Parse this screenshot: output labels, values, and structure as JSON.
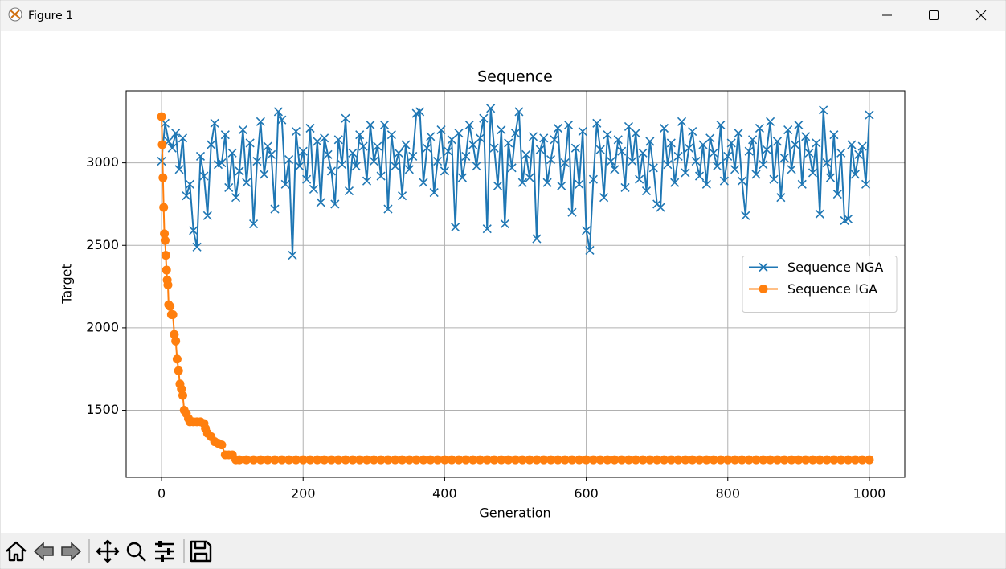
{
  "window": {
    "title": "Figure 1"
  },
  "chart_data": {
    "type": "line",
    "title": "Sequence",
    "x_label": "Generation",
    "y_label": "Target",
    "xlim": [
      -50,
      1050
    ],
    "ylim": [
      1093.5,
      3436.5
    ],
    "xticks": [
      0,
      200,
      400,
      600,
      800,
      1000
    ],
    "yticks": [
      1500,
      2000,
      2500,
      3000
    ],
    "grid": true,
    "legend_location": "center right",
    "series": [
      {
        "name": "Sequence NGA",
        "color": "#1f77b4",
        "marker": "x",
        "x": [
          0,
          5,
          10,
          15,
          20,
          25,
          30,
          35,
          40,
          45,
          50,
          55,
          60,
          65,
          70,
          75,
          80,
          85,
          90,
          95,
          100,
          105,
          110,
          115,
          120,
          125,
          130,
          135,
          140,
          145,
          150,
          155,
          160,
          165,
          170,
          175,
          180,
          185,
          190,
          195,
          200,
          205,
          210,
          215,
          220,
          225,
          230,
          235,
          240,
          245,
          250,
          255,
          260,
          265,
          270,
          275,
          280,
          285,
          290,
          295,
          300,
          305,
          310,
          315,
          320,
          325,
          330,
          335,
          340,
          345,
          350,
          355,
          360,
          365,
          370,
          375,
          380,
          385,
          390,
          395,
          400,
          405,
          410,
          415,
          420,
          425,
          430,
          435,
          440,
          445,
          450,
          455,
          460,
          465,
          470,
          475,
          480,
          485,
          490,
          495,
          500,
          505,
          510,
          515,
          520,
          525,
          530,
          535,
          540,
          545,
          550,
          555,
          560,
          565,
          570,
          575,
          580,
          585,
          590,
          595,
          600,
          605,
          610,
          615,
          620,
          625,
          630,
          635,
          640,
          645,
          650,
          655,
          660,
          665,
          670,
          675,
          680,
          685,
          690,
          695,
          700,
          705,
          710,
          715,
          720,
          725,
          730,
          735,
          740,
          745,
          750,
          755,
          760,
          765,
          770,
          775,
          780,
          785,
          790,
          795,
          800,
          805,
          810,
          815,
          820,
          825,
          830,
          835,
          840,
          845,
          850,
          855,
          860,
          865,
          870,
          875,
          880,
          885,
          890,
          895,
          900,
          905,
          910,
          915,
          920,
          925,
          930,
          935,
          940,
          945,
          950,
          955,
          960,
          965,
          970,
          975,
          980,
          985,
          990,
          995,
          1000
        ],
        "values": [
          3010,
          3240,
          3130,
          3090,
          3180,
          2960,
          3150,
          2800,
          2870,
          2590,
          2490,
          3040,
          2920,
          2680,
          3110,
          3240,
          2990,
          3000,
          3170,
          2850,
          3060,
          2790,
          2950,
          3200,
          2880,
          3120,
          2630,
          3010,
          3250,
          2930,
          3100,
          3050,
          2720,
          3310,
          3260,
          2870,
          3020,
          2440,
          3190,
          2980,
          3070,
          2900,
          3210,
          2840,
          3130,
          2760,
          3150,
          3050,
          2950,
          2750,
          3140,
          2990,
          3270,
          2830,
          3060,
          2980,
          3170,
          3100,
          2890,
          3230,
          3010,
          3100,
          2920,
          3230,
          2720,
          3170,
          2980,
          3060,
          2800,
          3110,
          2960,
          3040,
          3300,
          3310,
          2880,
          3090,
          3160,
          2820,
          3010,
          3200,
          2950,
          3070,
          3140,
          2610,
          3180,
          2910,
          3040,
          3230,
          3110,
          2980,
          3150,
          3270,
          2600,
          3330,
          3090,
          2860,
          3200,
          2630,
          3120,
          2970,
          3180,
          3310,
          2880,
          3050,
          2910,
          3160,
          2540,
          3080,
          3150,
          2880,
          3020,
          3140,
          3210,
          2860,
          3000,
          3230,
          2700,
          3090,
          2870,
          3190,
          2590,
          2470,
          2900,
          3240,
          3080,
          2790,
          3170,
          3010,
          2960,
          3140,
          3070,
          2850,
          3220,
          3010,
          3180,
          2900,
          3060,
          2830,
          3130,
          2970,
          2750,
          2730,
          3210,
          2990,
          3120,
          2880,
          3040,
          3250,
          2940,
          3090,
          3190,
          3010,
          2920,
          3110,
          2870,
          3150,
          3060,
          2980,
          3230,
          2890,
          3040,
          3120,
          2960,
          3180,
          2890,
          2680,
          3070,
          3140,
          2930,
          3210,
          2990,
          3080,
          3250,
          2900,
          3130,
          2790,
          3030,
          3200,
          2960,
          3110,
          3230,
          2870,
          3160,
          3060,
          2940,
          3120,
          2690,
          3320,
          3000,
          2910,
          3170,
          2810,
          3060,
          2650,
          2660,
          3110,
          2930,
          3050,
          3100,
          2870,
          3290
        ]
      },
      {
        "name": "Sequence IGA",
        "color": "#ff7f0e",
        "marker": "o",
        "x": [
          0,
          1,
          2,
          3,
          4,
          5,
          6,
          7,
          8,
          9,
          10,
          12,
          14,
          16,
          18,
          20,
          22,
          24,
          26,
          28,
          30,
          32,
          35,
          38,
          40,
          45,
          50,
          55,
          60,
          62,
          65,
          70,
          75,
          80,
          85,
          90,
          95,
          100,
          105,
          110,
          120,
          130,
          140,
          150,
          160,
          170,
          180,
          190,
          200,
          210,
          220,
          230,
          240,
          250,
          260,
          270,
          280,
          290,
          300,
          310,
          320,
          330,
          340,
          350,
          360,
          370,
          380,
          390,
          400,
          410,
          420,
          430,
          440,
          450,
          460,
          470,
          480,
          490,
          500,
          510,
          520,
          530,
          540,
          550,
          560,
          570,
          580,
          590,
          600,
          610,
          620,
          630,
          640,
          650,
          660,
          670,
          680,
          690,
          700,
          710,
          720,
          730,
          740,
          750,
          760,
          770,
          780,
          790,
          800,
          810,
          820,
          830,
          840,
          850,
          860,
          870,
          880,
          890,
          900,
          910,
          920,
          930,
          940,
          950,
          960,
          970,
          980,
          990,
          1000
        ],
        "values": [
          3280,
          3110,
          2910,
          2730,
          2570,
          2530,
          2440,
          2350,
          2290,
          2260,
          2140,
          2130,
          2080,
          2080,
          1960,
          1920,
          1810,
          1740,
          1660,
          1630,
          1590,
          1500,
          1480,
          1450,
          1430,
          1430,
          1430,
          1430,
          1420,
          1390,
          1360,
          1340,
          1310,
          1300,
          1290,
          1230,
          1230,
          1230,
          1200,
          1200,
          1200,
          1200,
          1200,
          1200,
          1200,
          1200,
          1200,
          1200,
          1200,
          1200,
          1200,
          1200,
          1200,
          1200,
          1200,
          1200,
          1200,
          1200,
          1200,
          1200,
          1200,
          1200,
          1200,
          1200,
          1200,
          1200,
          1200,
          1200,
          1200,
          1200,
          1200,
          1200,
          1200,
          1200,
          1200,
          1200,
          1200,
          1200,
          1200,
          1200,
          1200,
          1200,
          1200,
          1200,
          1200,
          1200,
          1200,
          1200,
          1200,
          1200,
          1200,
          1200,
          1200,
          1200,
          1200,
          1200,
          1200,
          1200,
          1200,
          1200,
          1200,
          1200,
          1200,
          1200,
          1200,
          1200,
          1200,
          1200,
          1200,
          1200,
          1200,
          1200,
          1200,
          1200,
          1200,
          1200,
          1200,
          1200,
          1200,
          1200,
          1200,
          1200,
          1200,
          1200,
          1200,
          1200,
          1200,
          1200,
          1200
        ]
      }
    ]
  }
}
